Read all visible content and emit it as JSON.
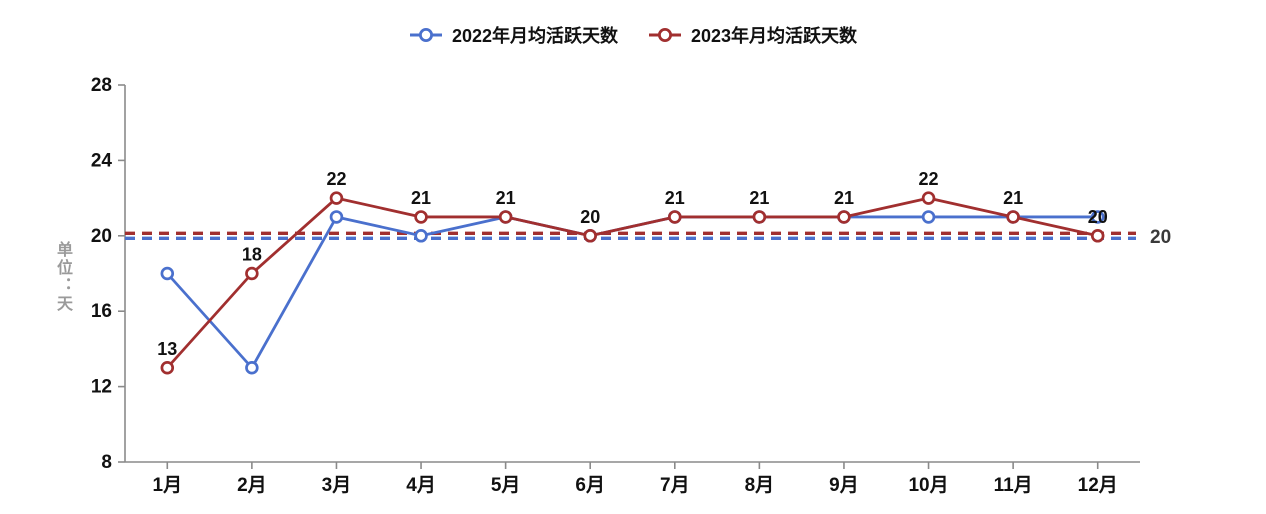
{
  "chart_data": {
    "type": "line",
    "categories": [
      "1月",
      "2月",
      "3月",
      "4月",
      "5月",
      "6月",
      "7月",
      "8月",
      "9月",
      "10月",
      "11月",
      "12月"
    ],
    "series": [
      {
        "name": "2022年月均活跃天数",
        "color": "#4a70cd",
        "values": [
          18,
          13,
          21,
          20,
          21,
          20,
          21,
          21,
          21,
          21,
          21,
          21
        ],
        "show_point_labels": false
      },
      {
        "name": "2023年月均活跃天数",
        "color": "#a12f2f",
        "values": [
          13,
          18,
          22,
          21,
          21,
          20,
          21,
          21,
          21,
          22,
          21,
          20
        ],
        "show_point_labels": true
      }
    ],
    "reference_lines": [
      {
        "value": 20,
        "color": "#a12f2f",
        "style": "dashed",
        "label": "20"
      },
      {
        "value": 20,
        "color": "#4a70cd",
        "style": "dashed",
        "label": ""
      }
    ],
    "ylabel": "单位：天",
    "xlabel": "",
    "title": "",
    "ylim": [
      8,
      28
    ],
    "yticks": [
      8,
      12,
      16,
      20,
      24,
      28
    ],
    "legend_position": "top",
    "grid": false,
    "colors": {
      "axis": "#8a8a8a",
      "tick_text": "#111111",
      "data_label": "#111111",
      "reference_label": "#3a3a3a",
      "marker_fill": "#ffffff"
    }
  }
}
